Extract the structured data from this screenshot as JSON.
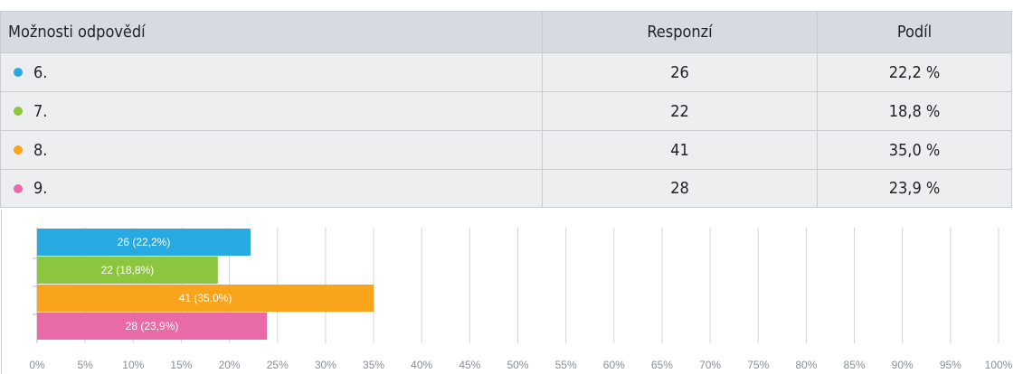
{
  "table": {
    "header": {
      "option": "Možnosti odpovědí",
      "responses": "Responzí",
      "share": "Podíl"
    },
    "rows": [
      {
        "option": "6.",
        "responses": "26",
        "share": "22,2 %",
        "color": "#27a9e1"
      },
      {
        "option": "7.",
        "responses": "22",
        "share": "18,8 %",
        "color": "#8cc63f"
      },
      {
        "option": "8.",
        "responses": "41",
        "share": "35,0 %",
        "color": "#f9a41a"
      },
      {
        "option": "9.",
        "responses": "28",
        "share": "23,9 %",
        "color": "#e86aa6"
      }
    ]
  },
  "chart_data": {
    "type": "bar",
    "orientation": "horizontal",
    "categories": [
      "6.",
      "7.",
      "8.",
      "9."
    ],
    "values": [
      22.2,
      18.8,
      35.0,
      23.9
    ],
    "counts": [
      26,
      22,
      41,
      28
    ],
    "data_labels": [
      "26 (22,2%)",
      "22 (18,8%)",
      "41 (35,0%)",
      "28 (23,9%)"
    ],
    "colors": [
      "#27a9e1",
      "#8cc63f",
      "#f9a41a",
      "#e86aa6"
    ],
    "xlim": [
      0,
      100
    ],
    "x_ticks": [
      "0%",
      "5%",
      "10%",
      "15%",
      "20%",
      "25%",
      "30%",
      "35%",
      "40%",
      "45%",
      "50%",
      "55%",
      "60%",
      "65%",
      "70%",
      "75%",
      "80%",
      "85%",
      "90%",
      "95%",
      "100%"
    ],
    "grid": true
  }
}
